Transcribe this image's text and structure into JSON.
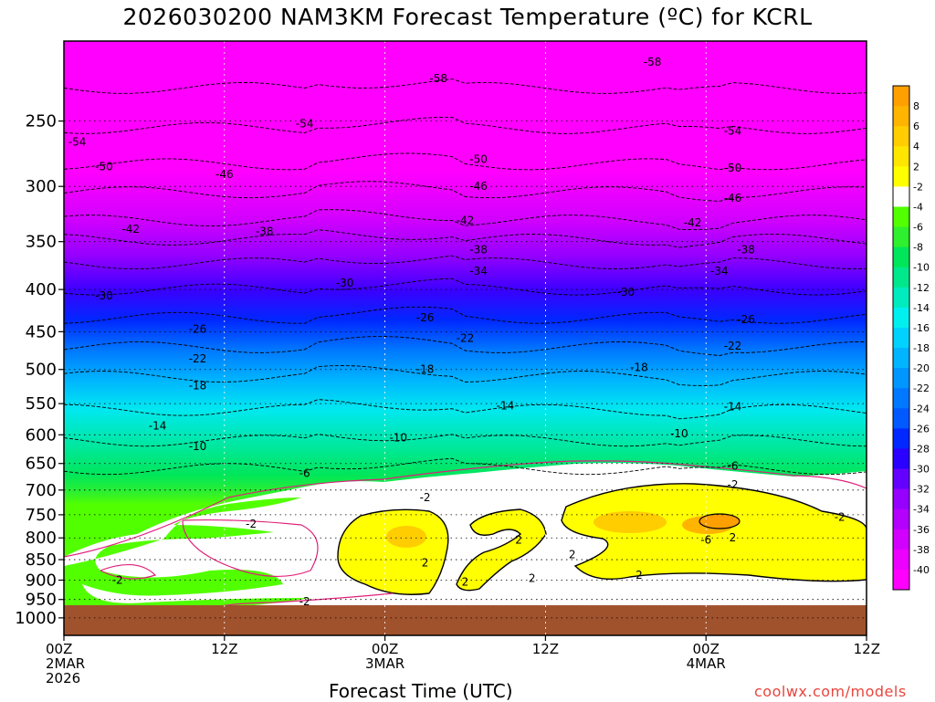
{
  "chart_data": {
    "type": "heatmap",
    "title": "2026030200 NAM3KM Forecast Temperature (ºC) for KCRL",
    "xlabel": "Forecast Time (UTC)",
    "ylabel": "",
    "y_axis": {
      "ticks": [
        "250",
        "300",
        "350",
        "400",
        "450",
        "500",
        "550",
        "600",
        "650",
        "700",
        "750",
        "800",
        "850",
        "900",
        "950",
        "1000"
      ],
      "scale": "log",
      "range_hpa": [
        1050,
        200
      ]
    },
    "x_axis": {
      "range_hours": [
        0,
        60
      ],
      "ticks": [
        {
          "hour": 0,
          "line1": "00Z",
          "line2": "2MAR",
          "line3": "2026"
        },
        {
          "hour": 12,
          "line1": "12Z",
          "line2": "",
          "line3": ""
        },
        {
          "hour": 24,
          "line1": "00Z",
          "line2": "3MAR",
          "line3": ""
        },
        {
          "hour": 36,
          "line1": "12Z",
          "line2": "",
          "line3": ""
        },
        {
          "hour": 48,
          "line1": "00Z",
          "line2": "4MAR",
          "line3": ""
        },
        {
          "hour": 60,
          "line1": "12Z",
          "line2": "",
          "line3": ""
        }
      ]
    },
    "isotherm_base_pressure": [
      {
        "t": -58,
        "p": 228
      },
      {
        "t": -54,
        "p": 255
      },
      {
        "t": -50,
        "p": 282
      },
      {
        "t": -46,
        "p": 305
      },
      {
        "t": -42,
        "p": 330
      },
      {
        "t": -38,
        "p": 348
      },
      {
        "t": -34,
        "p": 372
      },
      {
        "t": -30,
        "p": 400
      },
      {
        "t": -26,
        "p": 433
      },
      {
        "t": -22,
        "p": 470
      },
      {
        "t": -18,
        "p": 510
      },
      {
        "t": -14,
        "p": 560
      },
      {
        "t": -10,
        "p": 610
      },
      {
        "t": -6,
        "p": 660
      }
    ],
    "contour_labels": [
      {
        "text": "-58",
        "hour": 28,
        "p": 222
      },
      {
        "text": "-58",
        "hour": 44,
        "p": 212
      },
      {
        "text": "-54",
        "hour": 1,
        "p": 265
      },
      {
        "text": "-54",
        "hour": 18,
        "p": 252
      },
      {
        "text": "-54",
        "hour": 50,
        "p": 257
      },
      {
        "text": "-50",
        "hour": 3,
        "p": 284
      },
      {
        "text": "-50",
        "hour": 31,
        "p": 278
      },
      {
        "text": "-50",
        "hour": 50,
        "p": 285
      },
      {
        "text": "-46",
        "hour": 12,
        "p": 290
      },
      {
        "text": "-46",
        "hour": 31,
        "p": 300
      },
      {
        "text": "-46",
        "hour": 50,
        "p": 310
      },
      {
        "text": "-42",
        "hour": 5,
        "p": 338
      },
      {
        "text": "-42",
        "hour": 30,
        "p": 330
      },
      {
        "text": "-42",
        "hour": 47,
        "p": 332
      },
      {
        "text": "-38",
        "hour": 15,
        "p": 340
      },
      {
        "text": "-38",
        "hour": 31,
        "p": 358
      },
      {
        "text": "-38",
        "hour": 51,
        "p": 358
      },
      {
        "text": "-34",
        "hour": 31,
        "p": 380
      },
      {
        "text": "-34",
        "hour": 49,
        "p": 380
      },
      {
        "text": "-30",
        "hour": 3,
        "p": 407
      },
      {
        "text": "-30",
        "hour": 21,
        "p": 393
      },
      {
        "text": "-30",
        "hour": 42,
        "p": 403
      },
      {
        "text": "-26",
        "hour": 10,
        "p": 447
      },
      {
        "text": "-26",
        "hour": 27,
        "p": 433
      },
      {
        "text": "-26",
        "hour": 51,
        "p": 435
      },
      {
        "text": "-22",
        "hour": 10,
        "p": 485
      },
      {
        "text": "-22",
        "hour": 30,
        "p": 458
      },
      {
        "text": "-22",
        "hour": 50,
        "p": 468
      },
      {
        "text": "-18",
        "hour": 10,
        "p": 523
      },
      {
        "text": "-18",
        "hour": 27,
        "p": 500
      },
      {
        "text": "-18",
        "hour": 43,
        "p": 497
      },
      {
        "text": "-14",
        "hour": 7,
        "p": 585
      },
      {
        "text": "-14",
        "hour": 33,
        "p": 553
      },
      {
        "text": "-14",
        "hour": 50,
        "p": 555
      },
      {
        "text": "-10",
        "hour": 10,
        "p": 620
      },
      {
        "text": "-10",
        "hour": 25,
        "p": 605
      },
      {
        "text": "-10",
        "hour": 46,
        "p": 598
      },
      {
        "text": "-6",
        "hour": 18,
        "p": 668
      },
      {
        "text": "-6",
        "hour": 50,
        "p": 655
      },
      {
        "text": "-2",
        "hour": 27,
        "p": 715
      },
      {
        "text": "-2",
        "hour": 50,
        "p": 690
      },
      {
        "text": "-2",
        "hour": 14,
        "p": 770
      },
      {
        "text": "-2",
        "hour": 58,
        "p": 755
      },
      {
        "text": "-2",
        "hour": 4,
        "p": 900
      },
      {
        "text": "-2",
        "hour": 18,
        "p": 955
      },
      {
        "text": "2",
        "hour": 27,
        "p": 858
      },
      {
        "text": "2",
        "hour": 38,
        "p": 838
      },
      {
        "text": "2",
        "hour": 34,
        "p": 805
      },
      {
        "text": "2",
        "hour": 35,
        "p": 895
      },
      {
        "text": "2",
        "hour": 30,
        "p": 905
      },
      {
        "text": "2",
        "hour": 43,
        "p": 888
      },
      {
        "text": "2",
        "hour": 50,
        "p": 800
      },
      {
        "text": "-6",
        "hour": 48,
        "p": 805
      }
    ],
    "colorbar": {
      "labels": [
        "8",
        "6",
        "4",
        "2",
        "-2",
        "-4",
        "-6",
        "-8",
        "-10",
        "-12",
        "-14",
        "-16",
        "-18",
        "-20",
        "-22",
        "-24",
        "-26",
        "-28",
        "-30",
        "-32",
        "-34",
        "-36",
        "-38",
        "-40"
      ],
      "colors": [
        "#ff9f00",
        "#ffb400",
        "#ffcd00",
        "#ffe600",
        "#ffff00",
        "#ffffff",
        "#52ff00",
        "#2ef02e",
        "#00e65a",
        "#00e88c",
        "#00ecbe",
        "#00f0f0",
        "#00d2ff",
        "#00b4ff",
        "#0096ff",
        "#0078ff",
        "#005aff",
        "#0028ff",
        "#2a00ff",
        "#6400ff",
        "#9600ff",
        "#b400ff",
        "#d200ff",
        "#ec00ff",
        "#ff00ff"
      ]
    },
    "ground_color": "#a0522d",
    "grid": "dotted"
  },
  "credit": "coolwx.com/models"
}
